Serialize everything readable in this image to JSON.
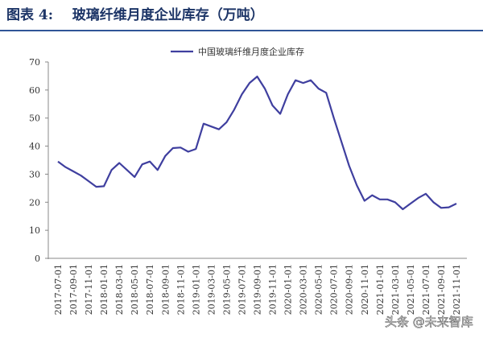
{
  "chart_data": {
    "type": "line",
    "title": "图表 4:    玻璃纤维月度企业库存（万吨）",
    "annotation": "头条 @未来智库",
    "categories": [
      "2017-07-01",
      null,
      "2017-09-01",
      null,
      "2017-11-01",
      null,
      "2018-01-01",
      null,
      "2018-03-01",
      null,
      "2018-05-01",
      null,
      "2018-07-01",
      null,
      "2018-09-01",
      null,
      "2018-11-01",
      null,
      "2019-01-01",
      null,
      "2019-03-01",
      null,
      "2019-05-01",
      null,
      "2019-07-01",
      null,
      "2019-09-01",
      null,
      "2019-11-01",
      null,
      "2020-01-01",
      null,
      "2020-03-01",
      null,
      "2020-05-01",
      null,
      "2020-07-01",
      null,
      "2020-09-01",
      null,
      "2020-11-01",
      null,
      "2021-01-01",
      null,
      "2021-03-01",
      null,
      "2021-05-01",
      null,
      "2021-07-01",
      null,
      "2021-09-01",
      null,
      "2021-11-01"
    ],
    "series": [
      {
        "name": "中国玻璃纤维月度企业库存",
        "color": "#3f3f9f",
        "values": [
          34.5,
          32.5,
          31,
          29.5,
          27.5,
          25.5,
          25.7,
          31.5,
          34,
          31.5,
          29,
          33.5,
          34.5,
          31.5,
          36.5,
          39.3,
          39.5,
          38,
          39,
          48,
          47,
          46,
          48.5,
          53,
          58.5,
          62.5,
          64.8,
          60.5,
          54.5,
          51.5,
          58.5,
          63.5,
          62.5,
          63.5,
          60.5,
          59,
          50,
          41.5,
          33,
          26,
          20.5,
          22.5,
          21,
          21,
          20,
          17.5,
          19.5,
          21.5,
          23,
          20,
          18,
          18.2,
          19.5
        ]
      }
    ],
    "ylim": [
      0,
      70
    ],
    "yticks": [
      0,
      10,
      20,
      30,
      40,
      50,
      60,
      70
    ],
    "grid": false,
    "legend": "top"
  }
}
